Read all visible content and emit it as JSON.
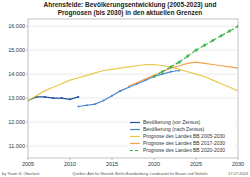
{
  "chart_data": {
    "type": "line",
    "title": "Ahrensfelde: Bevölkerungsentwicklung (2005-2023) und Prognosen (bis 2030) in den aktuellen Grenzen",
    "credit": "by Team G. Oberlack",
    "date": "17.07.2024",
    "source": "Quellen: Amt für Statistik Berlin-Brandenburg, Landesamt für Bauen und Verkehr",
    "x": [
      2005,
      2006,
      2007,
      2008,
      2009,
      2010,
      2011,
      2012,
      2013,
      2014,
      2015,
      2016,
      2017,
      2018,
      2019,
      2020,
      2021,
      2022,
      2023,
      2024,
      2025,
      2026,
      2027,
      2028,
      2029,
      2030
    ],
    "series": [
      {
        "name": "Bevölkerung (vor Zensus)",
        "color": "#1f4e9c",
        "marker": "circle",
        "line_style": "solid",
        "values": [
          12900,
          13050,
          13050,
          13000,
          13000,
          12950,
          13050,
          null,
          null,
          null,
          null,
          null,
          null,
          null,
          null,
          null,
          null,
          null,
          null,
          null,
          null,
          null,
          null,
          null,
          null,
          null
        ]
      },
      {
        "name": "Bevölkerung (nach Zensus)",
        "color": "#4a86c8",
        "marker": "circle",
        "line_style": "solid",
        "values": [
          null,
          null,
          null,
          null,
          null,
          null,
          12650,
          12700,
          12750,
          12900,
          13100,
          13300,
          13450,
          13600,
          13750,
          13900,
          14000,
          14100,
          14150,
          null,
          null,
          null,
          null,
          null,
          null,
          null
        ]
      },
      {
        "name": "Prognose des Landes BB 2005-2030",
        "color": "#e8c94a",
        "marker": "none",
        "line_style": "solid",
        "values": [
          12900,
          13100,
          13300,
          13450,
          13600,
          13750,
          13850,
          13950,
          14050,
          14150,
          14200,
          14250,
          14300,
          14350,
          14400,
          14400,
          14350,
          14300,
          14200,
          14100,
          14000,
          13900,
          13750,
          13600,
          13450,
          13300
        ]
      },
      {
        "name": "Prognose des Landes BB 2017-2030",
        "color": "#f4a24a",
        "marker": "none",
        "line_style": "solid",
        "values": [
          null,
          null,
          null,
          null,
          null,
          null,
          null,
          null,
          null,
          null,
          null,
          null,
          13500,
          13650,
          13800,
          13950,
          14100,
          14250,
          14350,
          14450,
          14500,
          14450,
          14400,
          14350,
          14300,
          14250
        ]
      },
      {
        "name": "Prognose des Landes BB 2020-2030",
        "color": "#3cb44b",
        "marker": "diamond",
        "line_style": "dashed",
        "values": [
          null,
          null,
          null,
          null,
          null,
          null,
          null,
          null,
          null,
          null,
          null,
          null,
          null,
          null,
          null,
          13900,
          14100,
          14300,
          14500,
          14750,
          15000,
          15200,
          15400,
          15600,
          15800,
          16000
        ]
      }
    ],
    "xlim": [
      2005,
      2030
    ],
    "xticks": [
      2005,
      2010,
      2015,
      2020,
      2025,
      2030
    ],
    "ylim": [
      10500,
      16300
    ],
    "yticks": [
      {
        "value": 11000,
        "label": "11.000"
      },
      {
        "value": 12000,
        "label": "12.000"
      },
      {
        "value": 13000,
        "label": "13.000"
      },
      {
        "value": 14000,
        "label": "14.000"
      },
      {
        "value": 15000,
        "label": "15.000"
      },
      {
        "value": 16000,
        "label": "16.000"
      }
    ],
    "grid": true,
    "legend": "lower right"
  }
}
